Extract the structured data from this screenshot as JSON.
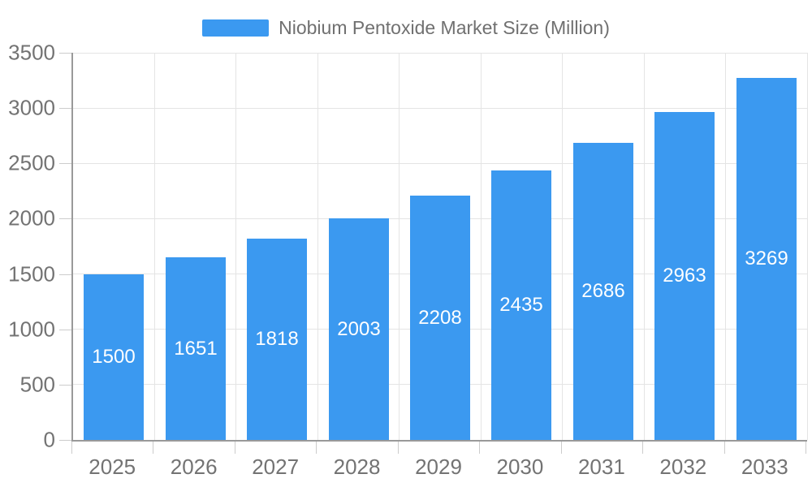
{
  "legend": {
    "label": "Niobium Pentoxide Market Size (Million)"
  },
  "chart_data": {
    "type": "bar",
    "title": "Niobium Pentoxide Market Size (Million)",
    "categories": [
      "2025",
      "2026",
      "2027",
      "2028",
      "2029",
      "2030",
      "2031",
      "2032",
      "2033"
    ],
    "series": [
      {
        "name": "Niobium Pentoxide Market Size (Million)",
        "values": [
          1500,
          1651,
          1818,
          2003,
          2208,
          2435,
          2686,
          2963,
          3269
        ]
      }
    ],
    "value_labels": [
      "1500",
      "1651",
      "1818",
      "2003",
      "2208",
      "2435",
      "2686",
      "2963",
      "3269"
    ],
    "xlabel": "",
    "ylabel": "",
    "ylim": [
      0,
      3500
    ],
    "yticks": [
      0,
      500,
      1000,
      1500,
      2000,
      2500,
      3000,
      3500
    ],
    "grid": true,
    "legend_position": "top",
    "colors": {
      "bar": "#3b99f0",
      "bar_value_label": "#ffffff",
      "grid_line": "#e4e4e4",
      "axis_line": "#999999",
      "tick_line": "#cccccc",
      "axis_text": "#737373",
      "legend_text": "#707070",
      "background": "#ffffff"
    }
  }
}
